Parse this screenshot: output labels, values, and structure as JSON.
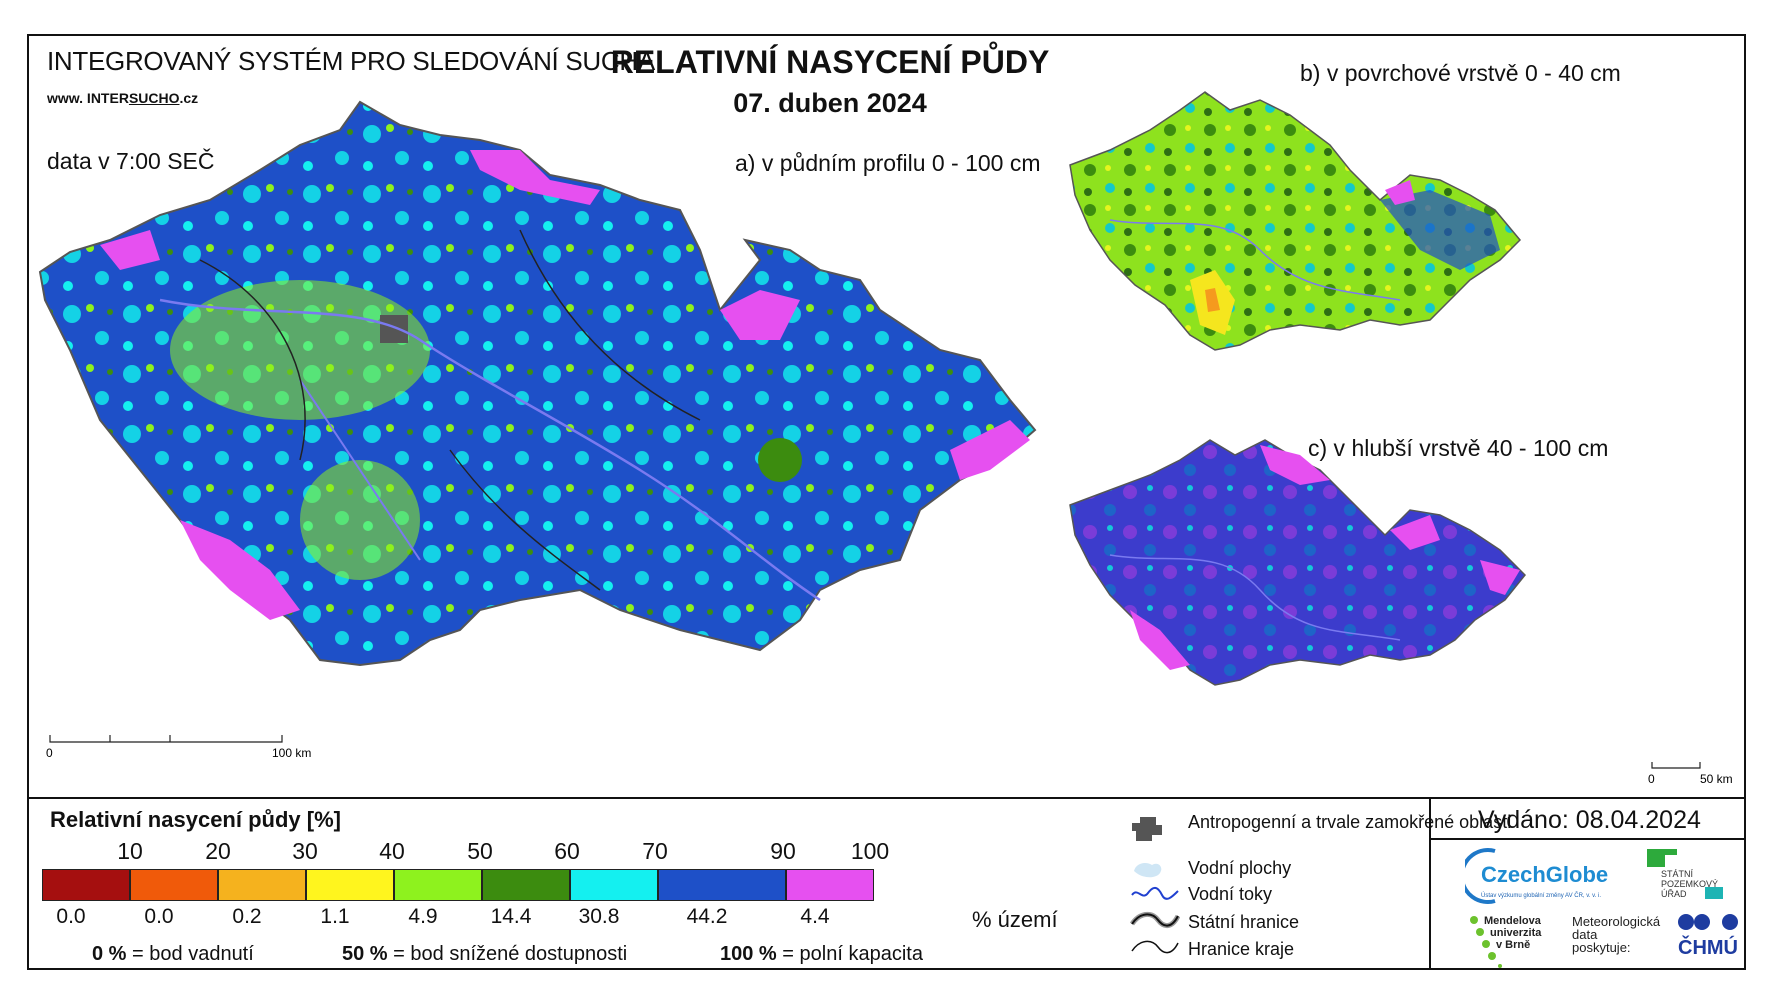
{
  "header": {
    "system_name": "INTEGROVANÝ SYSTÉM PRO SLEDOVÁNÍ SUCHA",
    "website_prefix": "www. INTER",
    "website_mid": "SUCHO",
    "website_suffix": ".cz",
    "data_time": "data v 7:00 SEČ",
    "title": "RELATIVNÍ NASYCENÍ PŮDY",
    "date": "07. duben 2024"
  },
  "maps": {
    "a_label": "a) v půdním profilu 0 - 100 cm",
    "b_label": "b) v povrchové vrstvě 0 - 40 cm",
    "c_label": "c) v hlubší vrstvě 40 - 100 cm",
    "scale_a": {
      "start": "0",
      "end": "100 km"
    },
    "scale_small": {
      "start": "0",
      "end": "50 km"
    }
  },
  "legend": {
    "title": "Relativní nasycení půdy [%]",
    "ticks": [
      "10",
      "20",
      "30",
      "40",
      "50",
      "60",
      "70",
      "90",
      "100"
    ],
    "classes": [
      {
        "color": "#a50f0f",
        "percent": "0.0"
      },
      {
        "color": "#f05a0a",
        "percent": "0.0"
      },
      {
        "color": "#f5b21e",
        "percent": "0.2"
      },
      {
        "color": "#fff51e",
        "percent": "1.1"
      },
      {
        "color": "#8ef21e",
        "percent": "4.9"
      },
      {
        "color": "#3c8c0f",
        "percent": "14.4"
      },
      {
        "color": "#14f0f0",
        "percent": "30.8"
      },
      {
        "color": "#1e50c8",
        "percent": "44.2"
      },
      {
        "color": "#e650f0",
        "percent": "4.4"
      }
    ],
    "unit": "% území",
    "notes": [
      {
        "value": "0 %",
        "text": "= bod vadnutí"
      },
      {
        "value": "50 %",
        "text": "= bod snížené dostupnosti"
      },
      {
        "value": "100 %",
        "text": "= polní kapacita"
      }
    ]
  },
  "map_legend": [
    {
      "icon": "anthropogenic-area-icon",
      "label": "Antropogenní a trvale zamokřené oblasti"
    },
    {
      "icon": "water-area-icon",
      "label": "Vodní plochy"
    },
    {
      "icon": "river-icon",
      "label": "Vodní toky"
    },
    {
      "icon": "state-border-icon",
      "label": "Státní hranice"
    },
    {
      "icon": "region-border-icon",
      "label": "Hranice kraje"
    }
  ],
  "footer": {
    "issued": "Vydáno: 08.04.2024",
    "czechglobe": "CzechGlobe",
    "czechglobe_sub": "Ústav výzkumu globální změny AV ČR, v. v. i.",
    "spu_line1": "STÁTNÍ",
    "spu_line2": "POZEMKOVÝ",
    "spu_line3": "ÚŘAD",
    "mendel_line1": "Mendelova",
    "mendel_line2": "univerzita",
    "mendel_line3": "v Brně",
    "meteo_line1": "Meteorologická",
    "meteo_line2": "data",
    "meteo_line3": "poskytuje:",
    "chmu": "ČHMÚ"
  }
}
